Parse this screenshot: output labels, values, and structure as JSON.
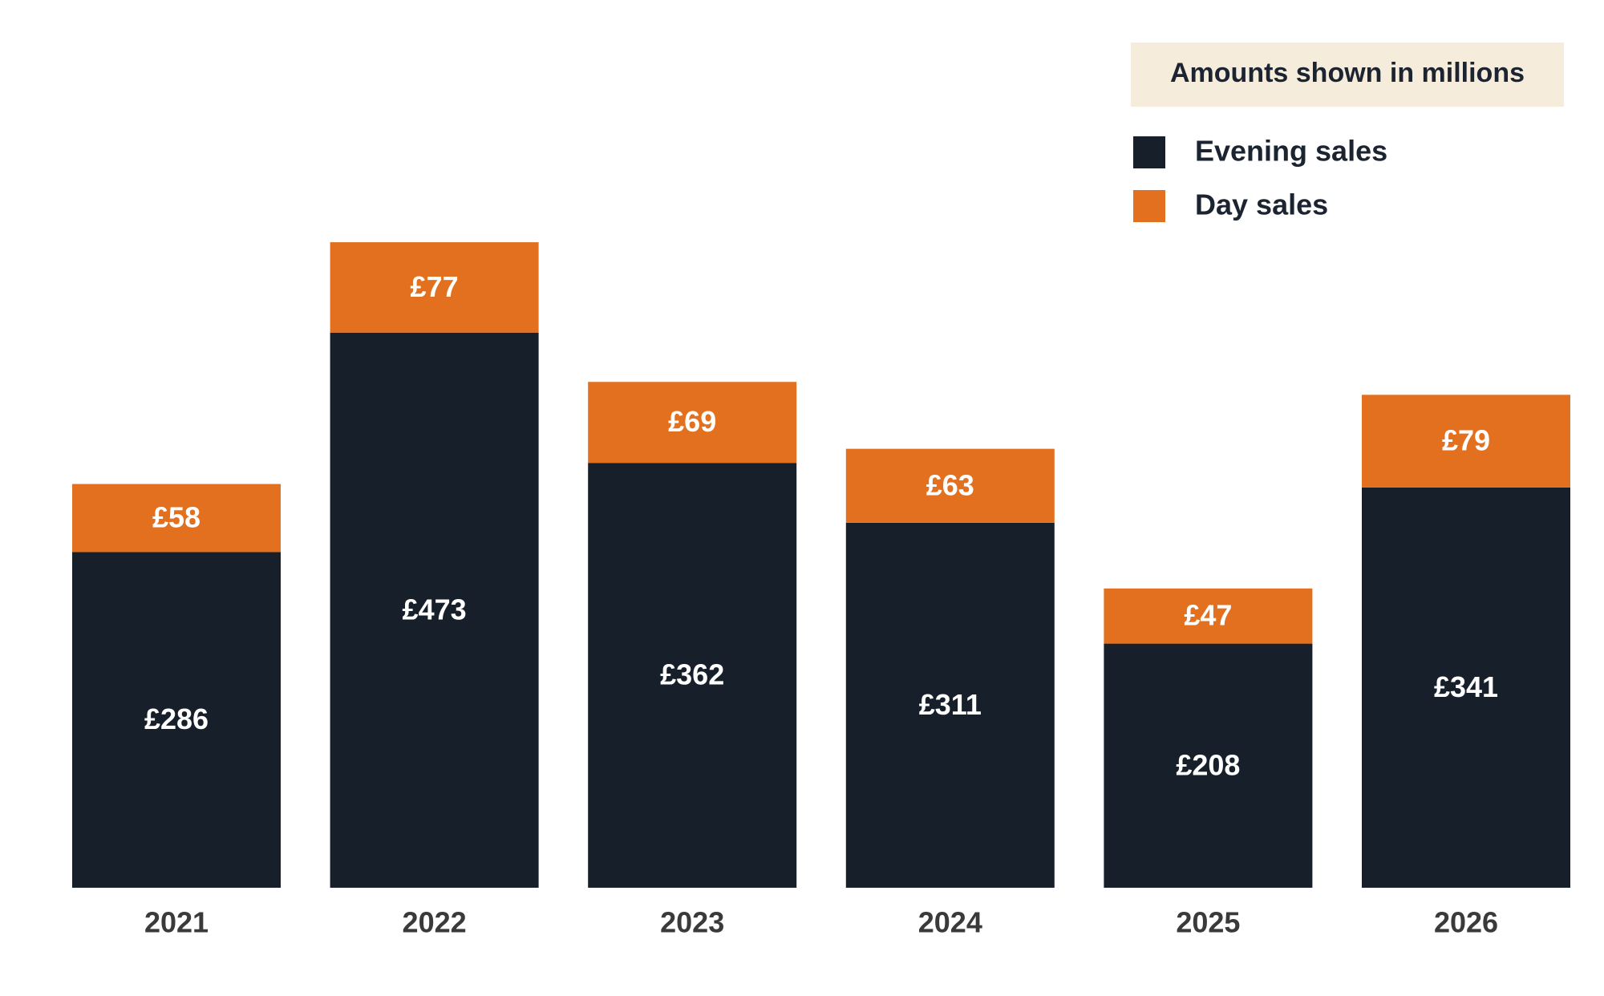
{
  "chart_data": {
    "type": "bar",
    "stacked": true,
    "title": "",
    "xlabel": "",
    "ylabel": "",
    "note": "Amounts shown in millions",
    "ylim": [
      0,
      550
    ],
    "categories": [
      "2021",
      "2022",
      "2023",
      "2024",
      "2025",
      "2026"
    ],
    "series": [
      {
        "name": "Evening sales",
        "color": "#161f2a",
        "values": [
          286,
          473,
          362,
          311,
          208,
          341
        ],
        "labels": [
          "£286",
          "£473",
          "£362",
          "£311",
          "£208",
          "£341"
        ]
      },
      {
        "name": "Day sales",
        "color": "#e3701f",
        "values": [
          58,
          77,
          69,
          63,
          47,
          79
        ],
        "labels": [
          "£58",
          "£77",
          "£69",
          "£63",
          "£47",
          "£79"
        ]
      }
    ],
    "legend_position": "top-right",
    "grid": false,
    "colors": {
      "note_background": "#f5ecdb",
      "tick_text": "#3a3a3a",
      "legend_text": "#1b2430",
      "bar_text": "#ffffff"
    }
  }
}
